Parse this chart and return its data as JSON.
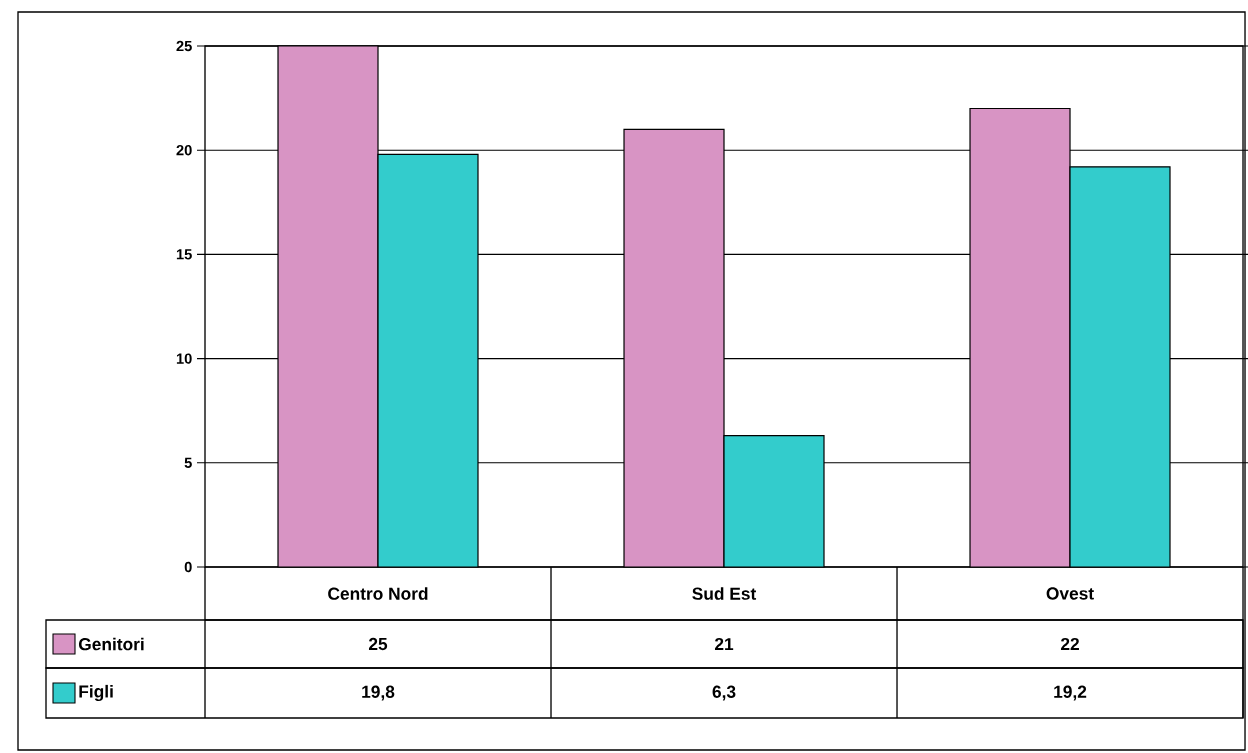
{
  "chart_data": {
    "type": "bar",
    "categories": [
      "Centro Nord",
      "Sud Est",
      "Ovest"
    ],
    "series": [
      {
        "name": "Genitori",
        "color": "#d894c4",
        "values": [
          25,
          21,
          22
        ],
        "value_labels": [
          "25",
          "21",
          "22"
        ]
      },
      {
        "name": "Figli",
        "color": "#33cccc",
        "values": [
          19.8,
          6.3,
          19.2
        ],
        "value_labels": [
          "19,8",
          "6,3",
          "19,2"
        ]
      }
    ],
    "ylim": [
      0,
      25
    ],
    "yticks": [
      0,
      5,
      10,
      15,
      20,
      25
    ],
    "grid": "y",
    "legend": "bottom"
  }
}
